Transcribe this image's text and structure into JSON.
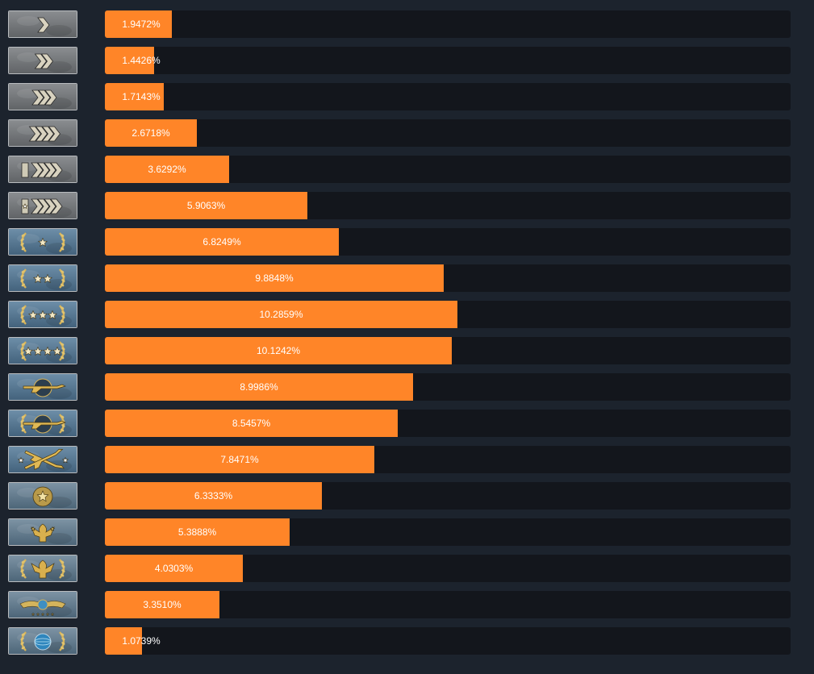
{
  "chart_data": {
    "type": "bar",
    "orientation": "horizontal",
    "categories": [
      "silver-1-icon",
      "silver-2-icon",
      "silver-3-icon",
      "silver-4-icon",
      "silver-elite-icon",
      "silver-elite-master-icon",
      "gold-nova-1-icon",
      "gold-nova-2-icon",
      "gold-nova-3-icon",
      "gold-nova-master-icon",
      "master-guardian-1-icon",
      "master-guardian-2-icon",
      "master-guardian-elite-icon",
      "distinguished-master-guardian-icon",
      "legendary-eagle-icon",
      "legendary-eagle-master-icon",
      "supreme-master-first-class-icon",
      "global-elite-icon"
    ],
    "values": [
      1.9472,
      1.4426,
      1.7143,
      2.6718,
      3.6292,
      5.9063,
      6.8249,
      9.8848,
      10.2859,
      10.1242,
      8.9986,
      8.5457,
      7.8471,
      6.3333,
      5.3888,
      4.0303,
      3.351,
      1.0739
    ],
    "labels": [
      "1.9472%",
      "1.4426%",
      "1.7143%",
      "2.6718%",
      "3.6292%",
      "5.9063%",
      "6.8249%",
      "9.8848%",
      "10.2859%",
      "10.1242%",
      "8.9986%",
      "8.5457%",
      "7.8471%",
      "6.3333%",
      "5.3888%",
      "4.0303%",
      "3.3510%",
      "1.0739%"
    ],
    "xlim": [
      0,
      20
    ],
    "grid": false,
    "legend": "none",
    "colors": {
      "bar": "#ff8528",
      "track": "#13161c",
      "background": "#1c232d",
      "label_text": "#ffffff"
    }
  }
}
